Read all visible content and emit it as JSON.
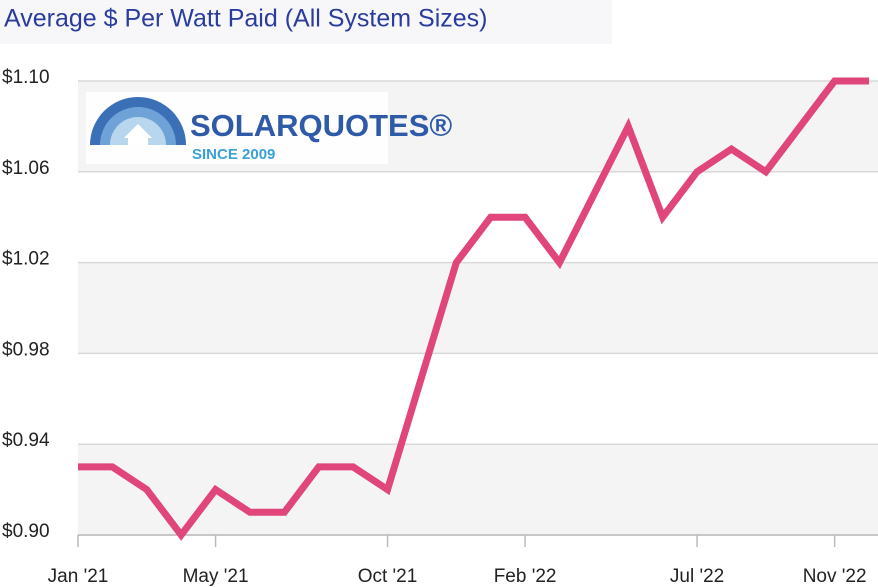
{
  "chart_data": {
    "type": "line",
    "title": "Average $ Per Watt Paid (All System Sizes)",
    "logo": {
      "name": "SOLARQUOTES®",
      "tagline": "SINCE 2009"
    },
    "categories": [
      "Jan '21",
      null,
      null,
      null,
      "May '21",
      null,
      null,
      null,
      null,
      "Oct '21",
      null,
      null,
      null,
      "Feb '22",
      null,
      null,
      null,
      null,
      "Jul '22",
      null,
      null,
      null,
      "Nov '22",
      null
    ],
    "series": [
      {
        "color": "#e0457b",
        "values": [
          0.93,
          0.93,
          0.92,
          0.9,
          0.92,
          0.91,
          0.91,
          0.93,
          0.93,
          0.92,
          0.97,
          1.02,
          1.04,
          1.04,
          1.02,
          1.05,
          1.08,
          1.04,
          1.06,
          1.07,
          1.06,
          1.08,
          1.1,
          1.1
        ]
      }
    ],
    "ylim": [
      0.9,
      1.1
    ],
    "yticks": [
      {
        "value": 0.9,
        "label": "$0.90"
      },
      {
        "value": 0.94,
        "label": "$0.94"
      },
      {
        "value": 0.98,
        "label": "$0.98"
      },
      {
        "value": 1.02,
        "label": "$1.02"
      },
      {
        "value": 1.06,
        "label": "$1.06"
      },
      {
        "value": 1.1,
        "label": "$1.10"
      }
    ],
    "grid": true
  }
}
